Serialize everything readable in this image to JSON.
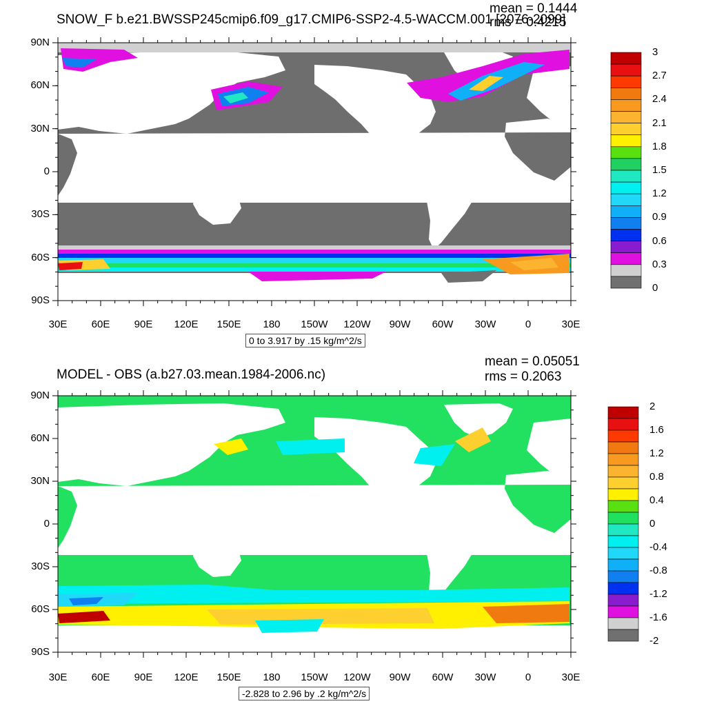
{
  "panels": [
    {
      "title": "SNOW_F b.e21.BWSSP245cmip6.f09_g17.CMIP6-SSP2-4.5-WACCM.001 [2076-2099]",
      "mean": "mean = 0.1444",
      "rms": "rms = 0.4215",
      "range_label": "0 to 3.917 by .15 kg/m^2/s",
      "colorbar_labels": [
        "3",
        "2.7",
        "2.4",
        "2.1",
        "1.8",
        "1.5",
        "1.2",
        "0.9",
        "0.6",
        "0.3",
        "0"
      ]
    },
    {
      "title": "MODEL - OBS (a.b27.03.mean.1984-2006.nc)",
      "mean": "mean = 0.05051",
      "rms": "rms = 0.2063",
      "range_label": "-2.828 to 2.96 by .2 kg/m^2/s",
      "colorbar_labels": [
        "2",
        "1.6",
        "1.2",
        "0.8",
        "0.4",
        "0",
        "-0.4",
        "-0.8",
        "-1.2",
        "-1.6",
        "-2"
      ]
    }
  ],
  "axes": {
    "lat_labels": [
      "90N",
      "60N",
      "30N",
      "0",
      "30S",
      "60S",
      "90S"
    ],
    "lon_labels": [
      "30E",
      "60E",
      "90E",
      "120E",
      "150E",
      "180",
      "150W",
      "120W",
      "90W",
      "60W",
      "30W",
      "0",
      "30E"
    ]
  },
  "colors": {
    "panel1_bar": [
      "#c00000",
      "#e81010",
      "#ff3a00",
      "#f07a10",
      "#f89a20",
      "#fcb430",
      "#fdd030",
      "#fff000",
      "#59e010",
      "#20d060",
      "#20e8c0",
      "#00f0f0",
      "#20d8f8",
      "#10b0f8",
      "#1080f0",
      "#0030f0",
      "#8a1cd0",
      "#e010e0",
      "#d0d0d0",
      "#707070"
    ],
    "panel2_bar": [
      "#c00000",
      "#e81010",
      "#ff3a00",
      "#f07a10",
      "#f89a20",
      "#fcb430",
      "#fdd030",
      "#fff000",
      "#59e010",
      "#20e060",
      "#20e8c0",
      "#00f0f0",
      "#20d8f8",
      "#10b0f8",
      "#1080f0",
      "#0030f0",
      "#8a1cd0",
      "#e010e0",
      "#d0d0d0",
      "#707070"
    ],
    "land_gray": "#6e6e6e",
    "ocean_green": "#22e060",
    "polar_gray": "#d0d0d0"
  }
}
